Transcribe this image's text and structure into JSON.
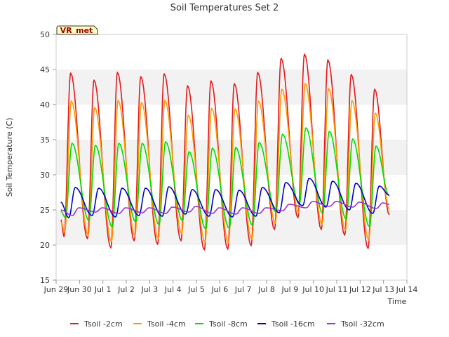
{
  "chart_data": {
    "type": "line",
    "title": "Soil Temperatures Set 2",
    "xlabel": "Time",
    "ylabel": "Soil Temperature (C)",
    "ylim": [
      15,
      50
    ],
    "y_ticks": [
      15,
      20,
      25,
      30,
      35,
      40,
      45,
      50
    ],
    "xlim": [
      "2024-06-29",
      "2024-07-14"
    ],
    "x_ticks": [
      "Jun 29",
      "Jun 30",
      "Jul 1",
      "Jul 2",
      "Jul 3",
      "Jul 4",
      "Jul 5",
      "Jul 6",
      "Jul 7",
      "Jul 8",
      "Jul 9",
      "Jul 10",
      "Jul 11",
      "Jul 12",
      "Jul 13",
      "Jul 14"
    ],
    "grid": "horizontal bands",
    "legend_position": "bottom",
    "annotation": "VR_met",
    "daily_dates": [
      "Jun 29",
      "Jun 30",
      "Jul 1",
      "Jul 2",
      "Jul 3",
      "Jul 4",
      "Jul 5",
      "Jul 6",
      "Jul 7",
      "Jul 8",
      "Jul 9",
      "Jul 10",
      "Jul 11",
      "Jul 12"
    ],
    "series": [
      {
        "name": "Tsoil -2cm",
        "color": "#e41a1c",
        "daily_max": [
          44.5,
          43.5,
          44.6,
          44.0,
          44.4,
          42.7,
          43.4,
          43.0,
          44.6,
          46.6,
          47.2,
          46.4,
          44.3,
          42.2
        ],
        "daily_min": [
          21.2,
          20.9,
          19.6,
          20.6,
          20.1,
          20.6,
          19.3,
          19.4,
          19.9,
          22.2,
          23.9,
          22.2,
          21.4,
          19.5
        ],
        "start_value": 23.6,
        "end_value": 24.3
      },
      {
        "name": "Tsoil -4cm",
        "color": "#ff9900",
        "daily_max": [
          40.5,
          39.6,
          40.6,
          40.3,
          40.6,
          38.5,
          39.5,
          39.4,
          40.5,
          42.2,
          43.0,
          42.3,
          40.6,
          38.8
        ],
        "daily_min": [
          21.9,
          21.4,
          20.5,
          21.3,
          20.9,
          21.6,
          20.4,
          20.3,
          20.8,
          23.1,
          24.6,
          22.9,
          22.1,
          20.7
        ],
        "start_value": 23.3,
        "end_value": 25.1
      },
      {
        "name": "Tsoil -8cm",
        "color": "#00dd00",
        "daily_max": [
          34.5,
          34.2,
          34.5,
          34.5,
          34.7,
          33.3,
          33.8,
          33.9,
          34.6,
          35.8,
          36.7,
          36.2,
          35.1,
          34.1
        ],
        "daily_min": [
          23.9,
          23.5,
          22.6,
          23.3,
          22.9,
          23.5,
          22.3,
          22.4,
          22.8,
          24.7,
          25.8,
          24.5,
          23.7,
          22.6
        ],
        "start_value": 24.8,
        "end_value": 27.0
      },
      {
        "name": "Tsoil -16cm",
        "color": "#0000cc",
        "daily_max": [
          28.2,
          28.1,
          28.1,
          28.1,
          28.3,
          27.9,
          27.9,
          27.8,
          28.2,
          28.9,
          29.5,
          29.1,
          28.8,
          28.4
        ],
        "daily_min": [
          23.9,
          24.2,
          24.0,
          24.2,
          24.1,
          24.4,
          24.1,
          24.0,
          24.1,
          24.6,
          25.6,
          25.4,
          25.0,
          24.5
        ],
        "start_value": 26.1,
        "end_value": 27.1
      },
      {
        "name": "Tsoil -32cm",
        "color": "#9933cc",
        "daily_max": [
          25.3,
          25.3,
          25.3,
          25.3,
          25.4,
          25.5,
          25.3,
          25.3,
          25.3,
          25.8,
          26.2,
          26.2,
          26.1,
          26.0
        ],
        "daily_min": [
          24.2,
          24.7,
          24.5,
          24.6,
          24.5,
          24.7,
          24.5,
          24.4,
          24.5,
          24.9,
          25.3,
          25.5,
          25.4,
          25.2
        ],
        "start_value": 25.0,
        "end_value": 25.8
      }
    ]
  }
}
